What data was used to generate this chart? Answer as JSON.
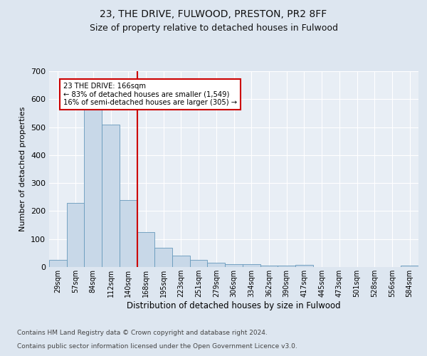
{
  "title1": "23, THE DRIVE, FULWOOD, PRESTON, PR2 8FF",
  "title2": "Size of property relative to detached houses in Fulwood",
  "xlabel": "Distribution of detached houses by size in Fulwood",
  "ylabel": "Number of detached properties",
  "categories": [
    "29sqm",
    "57sqm",
    "84sqm",
    "112sqm",
    "140sqm",
    "168sqm",
    "195sqm",
    "223sqm",
    "251sqm",
    "279sqm",
    "306sqm",
    "334sqm",
    "362sqm",
    "390sqm",
    "417sqm",
    "445sqm",
    "473sqm",
    "501sqm",
    "528sqm",
    "556sqm",
    "584sqm"
  ],
  "values": [
    25,
    230,
    570,
    510,
    240,
    125,
    70,
    40,
    25,
    15,
    10,
    10,
    5,
    5,
    7,
    0,
    0,
    0,
    0,
    0,
    5
  ],
  "bar_color": "#c8d8e8",
  "bar_edge_color": "#6699bb",
  "annotation_line1": "23 THE DRIVE: 166sqm",
  "annotation_line2": "← 83% of detached houses are smaller (1,549)",
  "annotation_line3": "16% of semi-detached houses are larger (305) →",
  "red_line_color": "#cc0000",
  "annotation_box_color": "#ffffff",
  "annotation_box_edge": "#cc0000",
  "ylim": [
    0,
    700
  ],
  "yticks": [
    0,
    100,
    200,
    300,
    400,
    500,
    600,
    700
  ],
  "footer1": "Contains HM Land Registry data © Crown copyright and database right 2024.",
  "footer2": "Contains public sector information licensed under the Open Government Licence v3.0.",
  "bg_color": "#dde6f0",
  "plot_bg_color": "#e8eef5",
  "grid_color": "#ffffff",
  "title1_fontsize": 10,
  "title2_fontsize": 9
}
